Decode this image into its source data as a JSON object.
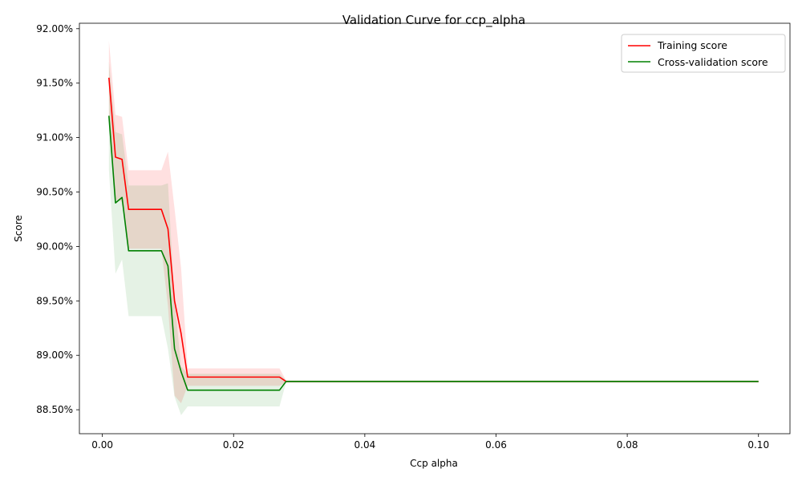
{
  "chart_data": {
    "type": "line",
    "title": "Validation Curve for ccp_alpha",
    "xlabel": "Ccp alpha",
    "ylabel": "Score",
    "xlim": [
      -0.0035,
      0.1048
    ],
    "ylim": [
      0.8828,
      0.9205
    ],
    "x_ticks": [
      0.0,
      0.02,
      0.04,
      0.06,
      0.08,
      0.1
    ],
    "x_tick_labels": [
      "0.00",
      "0.02",
      "0.04",
      "0.06",
      "0.08",
      "0.10"
    ],
    "y_ticks": [
      0.885,
      0.89,
      0.895,
      0.9,
      0.905,
      0.91,
      0.915,
      0.92
    ],
    "y_tick_labels": [
      "88.50%",
      "89.00%",
      "89.50%",
      "90.00%",
      "90.50%",
      "91.00%",
      "91.50%",
      "92.00%"
    ],
    "grid": false,
    "legend_position": "top-right",
    "series": [
      {
        "name": "Training score",
        "color": "#ff0000",
        "band_color": "#ff0000",
        "band_opacity": 0.12,
        "x": [
          0.001,
          0.002,
          0.003,
          0.004,
          0.005,
          0.006,
          0.007,
          0.008,
          0.009,
          0.01,
          0.011,
          0.012,
          0.013,
          0.02,
          0.027,
          0.028,
          0.1
        ],
        "mean": [
          0.9155,
          0.9082,
          0.908,
          0.9034,
          0.9034,
          0.9034,
          0.9034,
          0.9034,
          0.9034,
          0.9016,
          0.895,
          0.892,
          0.888,
          0.888,
          0.888,
          0.8876,
          0.8876
        ],
        "upper": [
          0.9189,
          0.9121,
          0.9119,
          0.907,
          0.907,
          0.907,
          0.907,
          0.907,
          0.907,
          0.9087,
          0.9035,
          0.898,
          0.8888,
          0.8888,
          0.8888,
          0.8877,
          0.8877
        ],
        "lower": [
          0.912,
          0.9043,
          0.9041,
          0.8998,
          0.8998,
          0.8998,
          0.8998,
          0.8998,
          0.8998,
          0.8945,
          0.8863,
          0.8856,
          0.8872,
          0.8872,
          0.8872,
          0.8875,
          0.8875
        ]
      },
      {
        "name": "Cross-validation score",
        "color": "#008000",
        "band_color": "#008000",
        "band_opacity": 0.1,
        "x": [
          0.001,
          0.002,
          0.003,
          0.004,
          0.005,
          0.006,
          0.007,
          0.008,
          0.009,
          0.01,
          0.011,
          0.012,
          0.013,
          0.02,
          0.027,
          0.028,
          0.1
        ],
        "mean": [
          0.912,
          0.904,
          0.9045,
          0.8996,
          0.8996,
          0.8996,
          0.8996,
          0.8996,
          0.8996,
          0.8982,
          0.8906,
          0.8885,
          0.8868,
          0.8868,
          0.8868,
          0.8876,
          0.8876
        ],
        "upper": [
          0.917,
          0.9105,
          0.9103,
          0.9056,
          0.9056,
          0.9056,
          0.9056,
          0.9056,
          0.9056,
          0.9058,
          0.895,
          0.889,
          0.8883,
          0.8883,
          0.8883,
          0.8877,
          0.8877
        ],
        "lower": [
          0.907,
          0.8975,
          0.8988,
          0.8936,
          0.8936,
          0.8936,
          0.8936,
          0.8936,
          0.8936,
          0.8906,
          0.8862,
          0.8845,
          0.8853,
          0.8853,
          0.8853,
          0.8875,
          0.8875
        ]
      }
    ]
  }
}
